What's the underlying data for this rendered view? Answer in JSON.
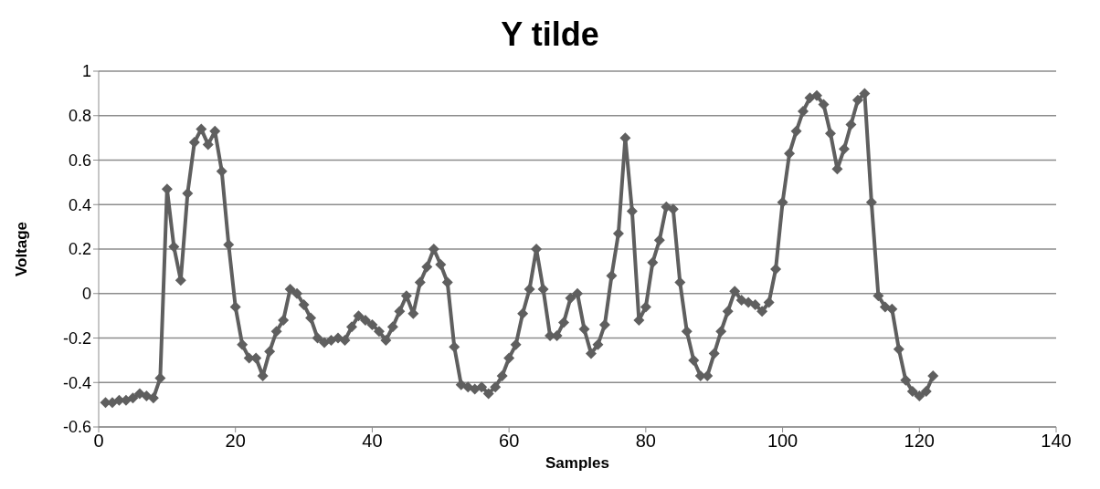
{
  "chart_data": {
    "type": "line",
    "title": "Y tilde",
    "xlabel": "Samples",
    "ylabel": "Voltage",
    "x": [
      1,
      2,
      3,
      4,
      5,
      6,
      7,
      8,
      9,
      10,
      11,
      12,
      13,
      14,
      15,
      16,
      17,
      18,
      19,
      20,
      21,
      22,
      23,
      24,
      25,
      26,
      27,
      28,
      29,
      30,
      31,
      32,
      33,
      34,
      35,
      36,
      37,
      38,
      39,
      40,
      41,
      42,
      43,
      44,
      45,
      46,
      47,
      48,
      49,
      50,
      51,
      52,
      53,
      54,
      55,
      56,
      57,
      58,
      59,
      60,
      61,
      62,
      63,
      64,
      65,
      66,
      67,
      68,
      69,
      70,
      71,
      72,
      73,
      74,
      75,
      76,
      77,
      78,
      79,
      80,
      81,
      82,
      83,
      84,
      85,
      86,
      87,
      88,
      89,
      90,
      91,
      92,
      93,
      94,
      95,
      96,
      97,
      98,
      99,
      100,
      101,
      102,
      103,
      104,
      105,
      106,
      107,
      108,
      109,
      110,
      111,
      112,
      113,
      114,
      115,
      116,
      117,
      118,
      119,
      120,
      121,
      122
    ],
    "series": [
      {
        "color": "#5f5f5f",
        "values": [
          -0.49,
          -0.49,
          -0.48,
          -0.48,
          -0.47,
          -0.45,
          -0.46,
          -0.47,
          -0.38,
          0.47,
          0.21,
          0.06,
          0.45,
          0.68,
          0.74,
          0.67,
          0.73,
          0.55,
          0.22,
          -0.06,
          -0.23,
          -0.29,
          -0.29,
          -0.37,
          -0.26,
          -0.17,
          -0.12,
          0.02,
          0.0,
          -0.05,
          -0.11,
          -0.2,
          -0.22,
          -0.21,
          -0.2,
          -0.21,
          -0.15,
          -0.1,
          -0.12,
          -0.14,
          -0.17,
          -0.21,
          -0.15,
          -0.08,
          -0.01,
          -0.09,
          0.05,
          0.12,
          0.2,
          0.13,
          0.05,
          -0.24,
          -0.41,
          -0.42,
          -0.43,
          -0.42,
          -0.45,
          -0.42,
          -0.37,
          -0.29,
          -0.23,
          -0.09,
          0.02,
          0.2,
          0.02,
          -0.19,
          -0.19,
          -0.13,
          -0.02,
          0.0,
          -0.16,
          -0.27,
          -0.23,
          -0.14,
          0.08,
          0.27,
          0.7,
          0.37,
          -0.12,
          -0.06,
          0.14,
          0.24,
          0.39,
          0.38,
          0.05,
          -0.17,
          -0.3,
          -0.37,
          -0.37,
          -0.27,
          -0.17,
          -0.08,
          0.01,
          -0.03,
          -0.04,
          -0.05,
          -0.08,
          -0.04,
          0.11,
          0.41,
          0.63,
          0.73,
          0.82,
          0.88,
          0.89,
          0.85,
          0.72,
          0.56,
          0.65,
          0.76,
          0.87,
          0.9,
          0.41,
          -0.01,
          -0.06,
          -0.07,
          -0.25,
          -0.39,
          -0.44,
          -0.46,
          -0.44,
          -0.37
        ]
      }
    ],
    "xlim": [
      0,
      140
    ],
    "xticks": [
      0,
      20,
      40,
      60,
      80,
      100,
      120,
      140
    ],
    "ylim": [
      -0.6,
      1
    ],
    "yticks": [
      -0.6,
      -0.4,
      -0.2,
      0,
      0.2,
      0.4,
      0.6,
      0.8,
      1
    ],
    "grid": "y",
    "marker": "diamond",
    "line_style": "solid"
  }
}
